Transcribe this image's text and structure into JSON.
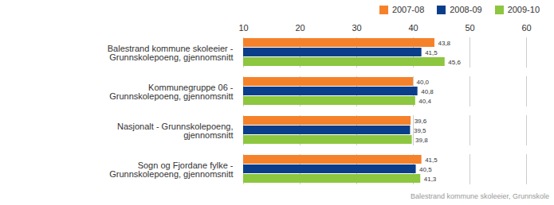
{
  "chart_data": {
    "type": "bar",
    "orientation": "horizontal",
    "caption": "Balestrand kommune skoleeier, Grunnskole",
    "categories": [
      "Balestrand kommune skoleeier - Grunnskolepoeng, gjennomsnitt",
      "Kommunegruppe 06 - Grunnskolepoeng, gjennomsnitt",
      "Nasjonalt - Grunnskolepoeng, gjennomsnitt",
      "Sogn og Fjordane fylke - Grunnskolepoeng, gjennomsnitt"
    ],
    "series": [
      {
        "name": "2007-08",
        "color": "#f5822a",
        "values": [
          43.8,
          40.0,
          39.6,
          41.5
        ],
        "value_labels": [
          "43,8",
          "40,0",
          "39,6",
          "41,5"
        ]
      },
      {
        "name": "2008-09",
        "color": "#0b3e8a",
        "values": [
          41.5,
          40.8,
          39.5,
          40.5
        ],
        "value_labels": [
          "41,5",
          "40,8",
          "39,5",
          "40,5"
        ]
      },
      {
        "name": "2009-10",
        "color": "#8dc63f",
        "values": [
          45.6,
          40.4,
          39.8,
          41.3
        ],
        "value_labels": [
          "45,6",
          "40,4",
          "39,8",
          "41,3"
        ]
      }
    ],
    "xlim": [
      10,
      60
    ],
    "xticks": [
      10,
      20,
      30,
      40,
      50,
      60
    ],
    "grid": true,
    "legend": "top-right",
    "data_labels": true
  }
}
